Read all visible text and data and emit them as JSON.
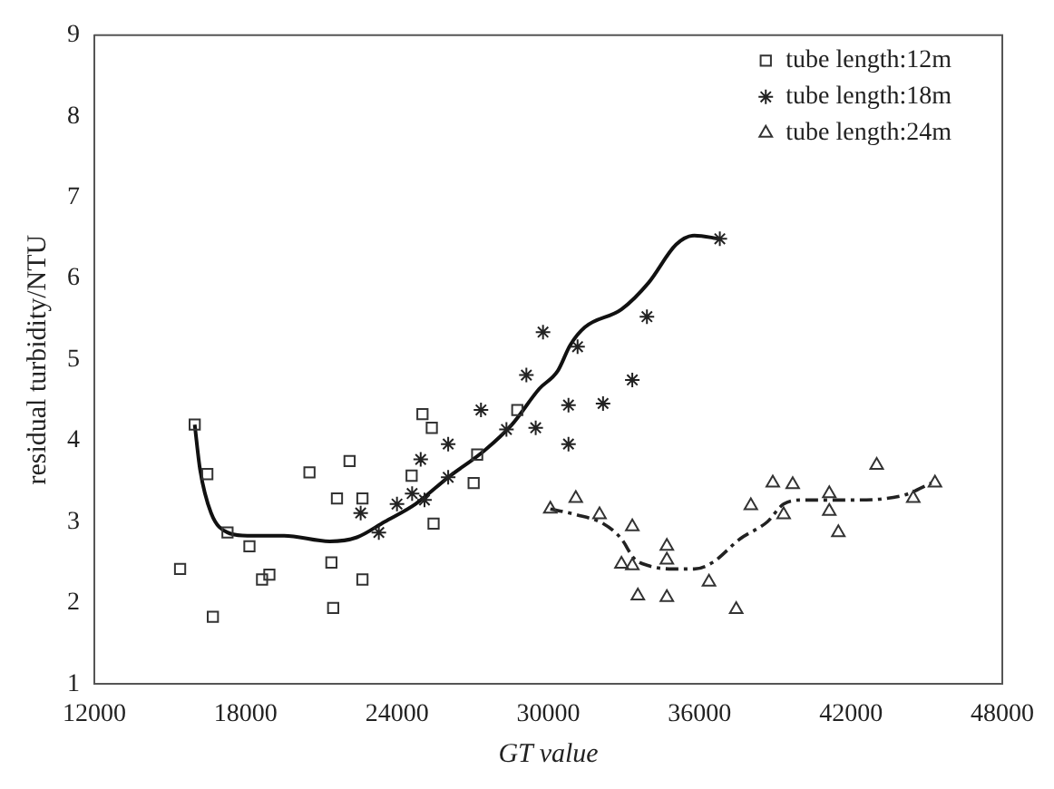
{
  "chart_data": {
    "type": "scatter",
    "xlabel": "GT value",
    "ylabel": "residual turbidity/NTU",
    "xlim": [
      12000,
      48000
    ],
    "xticks": [
      12000,
      18000,
      24000,
      30000,
      36000,
      42000,
      48000
    ],
    "ylim": [
      1,
      9
    ],
    "yticks": [
      1,
      2,
      3,
      4,
      5,
      6,
      7,
      8,
      9
    ],
    "grid": false,
    "legend": "top right",
    "series": [
      {
        "name": "tube length:12m",
        "color": "#333333",
        "marker": "square",
        "x": [
          15980,
          16480,
          17280,
          18150,
          15400,
          16700,
          18650,
          18940,
          20530,
          22120,
          21620,
          22630,
          21400,
          21470,
          22630,
          24580,
          25450,
          25010,
          25380,
          27180,
          27040,
          28770
        ],
        "values": [
          4.2,
          3.59,
          2.87,
          2.7,
          2.42,
          1.83,
          2.29,
          2.35,
          3.61,
          3.75,
          3.29,
          3.29,
          2.5,
          1.94,
          2.29,
          3.57,
          2.98,
          4.33,
          4.16,
          3.83,
          3.48,
          4.38
        ]
      },
      {
        "name": "tube length:18m",
        "color": "#222222",
        "marker": "cross",
        "x": [
          22560,
          23280,
          24000,
          24600,
          24940,
          25090,
          26030,
          26030,
          27330,
          28340,
          29130,
          29500,
          29790,
          30800,
          30800,
          31160,
          32170,
          33330,
          33910,
          36800
        ],
        "values": [
          3.11,
          2.87,
          3.22,
          3.35,
          3.77,
          3.27,
          3.96,
          3.55,
          4.38,
          4.14,
          4.81,
          4.16,
          5.34,
          4.44,
          3.96,
          5.16,
          4.46,
          4.75,
          5.53,
          6.49
        ]
      },
      {
        "name": "tube length:24m",
        "color": "#333333",
        "marker": "triangle",
        "x": [
          30080,
          31090,
          32030,
          33330,
          32900,
          33330,
          34700,
          34700,
          33550,
          34700,
          36370,
          37450,
          38030,
          38900,
          39690,
          39330,
          41140,
          41140,
          41500,
          43020,
          44470,
          45330
        ],
        "values": [
          3.16,
          3.29,
          3.09,
          2.94,
          2.48,
          2.46,
          2.7,
          2.53,
          2.09,
          2.07,
          2.26,
          1.92,
          3.2,
          3.48,
          3.46,
          3.09,
          3.35,
          3.13,
          2.87,
          3.7,
          3.29,
          3.48
        ]
      },
      {
        "type": "line",
        "color": "#111111",
        "marker": "none",
        "line_style": "solid",
        "x": [
          15980,
          16190,
          16630,
          17280,
          18070,
          19520,
          21330,
          22410,
          23500,
          24730,
          26030,
          27470,
          28560,
          29640,
          30370,
          30870,
          31450,
          32900,
          33980,
          35070,
          35790,
          36800
        ],
        "values": [
          4.2,
          3.65,
          3.11,
          2.87,
          2.83,
          2.83,
          2.76,
          2.81,
          3.0,
          3.22,
          3.55,
          3.88,
          4.2,
          4.64,
          4.86,
          5.18,
          5.4,
          5.62,
          5.95,
          6.42,
          6.53,
          6.49
        ]
      },
      {
        "type": "line",
        "color": "#222222",
        "marker": "none",
        "line_style": "dashed",
        "x": [
          30080,
          31090,
          32170,
          32900,
          33400,
          33980,
          34920,
          35790,
          36510,
          37600,
          38680,
          39330,
          40120,
          41930,
          44100,
          45190
        ],
        "values": [
          3.16,
          3.09,
          2.98,
          2.79,
          2.55,
          2.46,
          2.42,
          2.42,
          2.5,
          2.79,
          3.0,
          3.22,
          3.27,
          3.27,
          3.33,
          3.48
        ]
      }
    ]
  }
}
